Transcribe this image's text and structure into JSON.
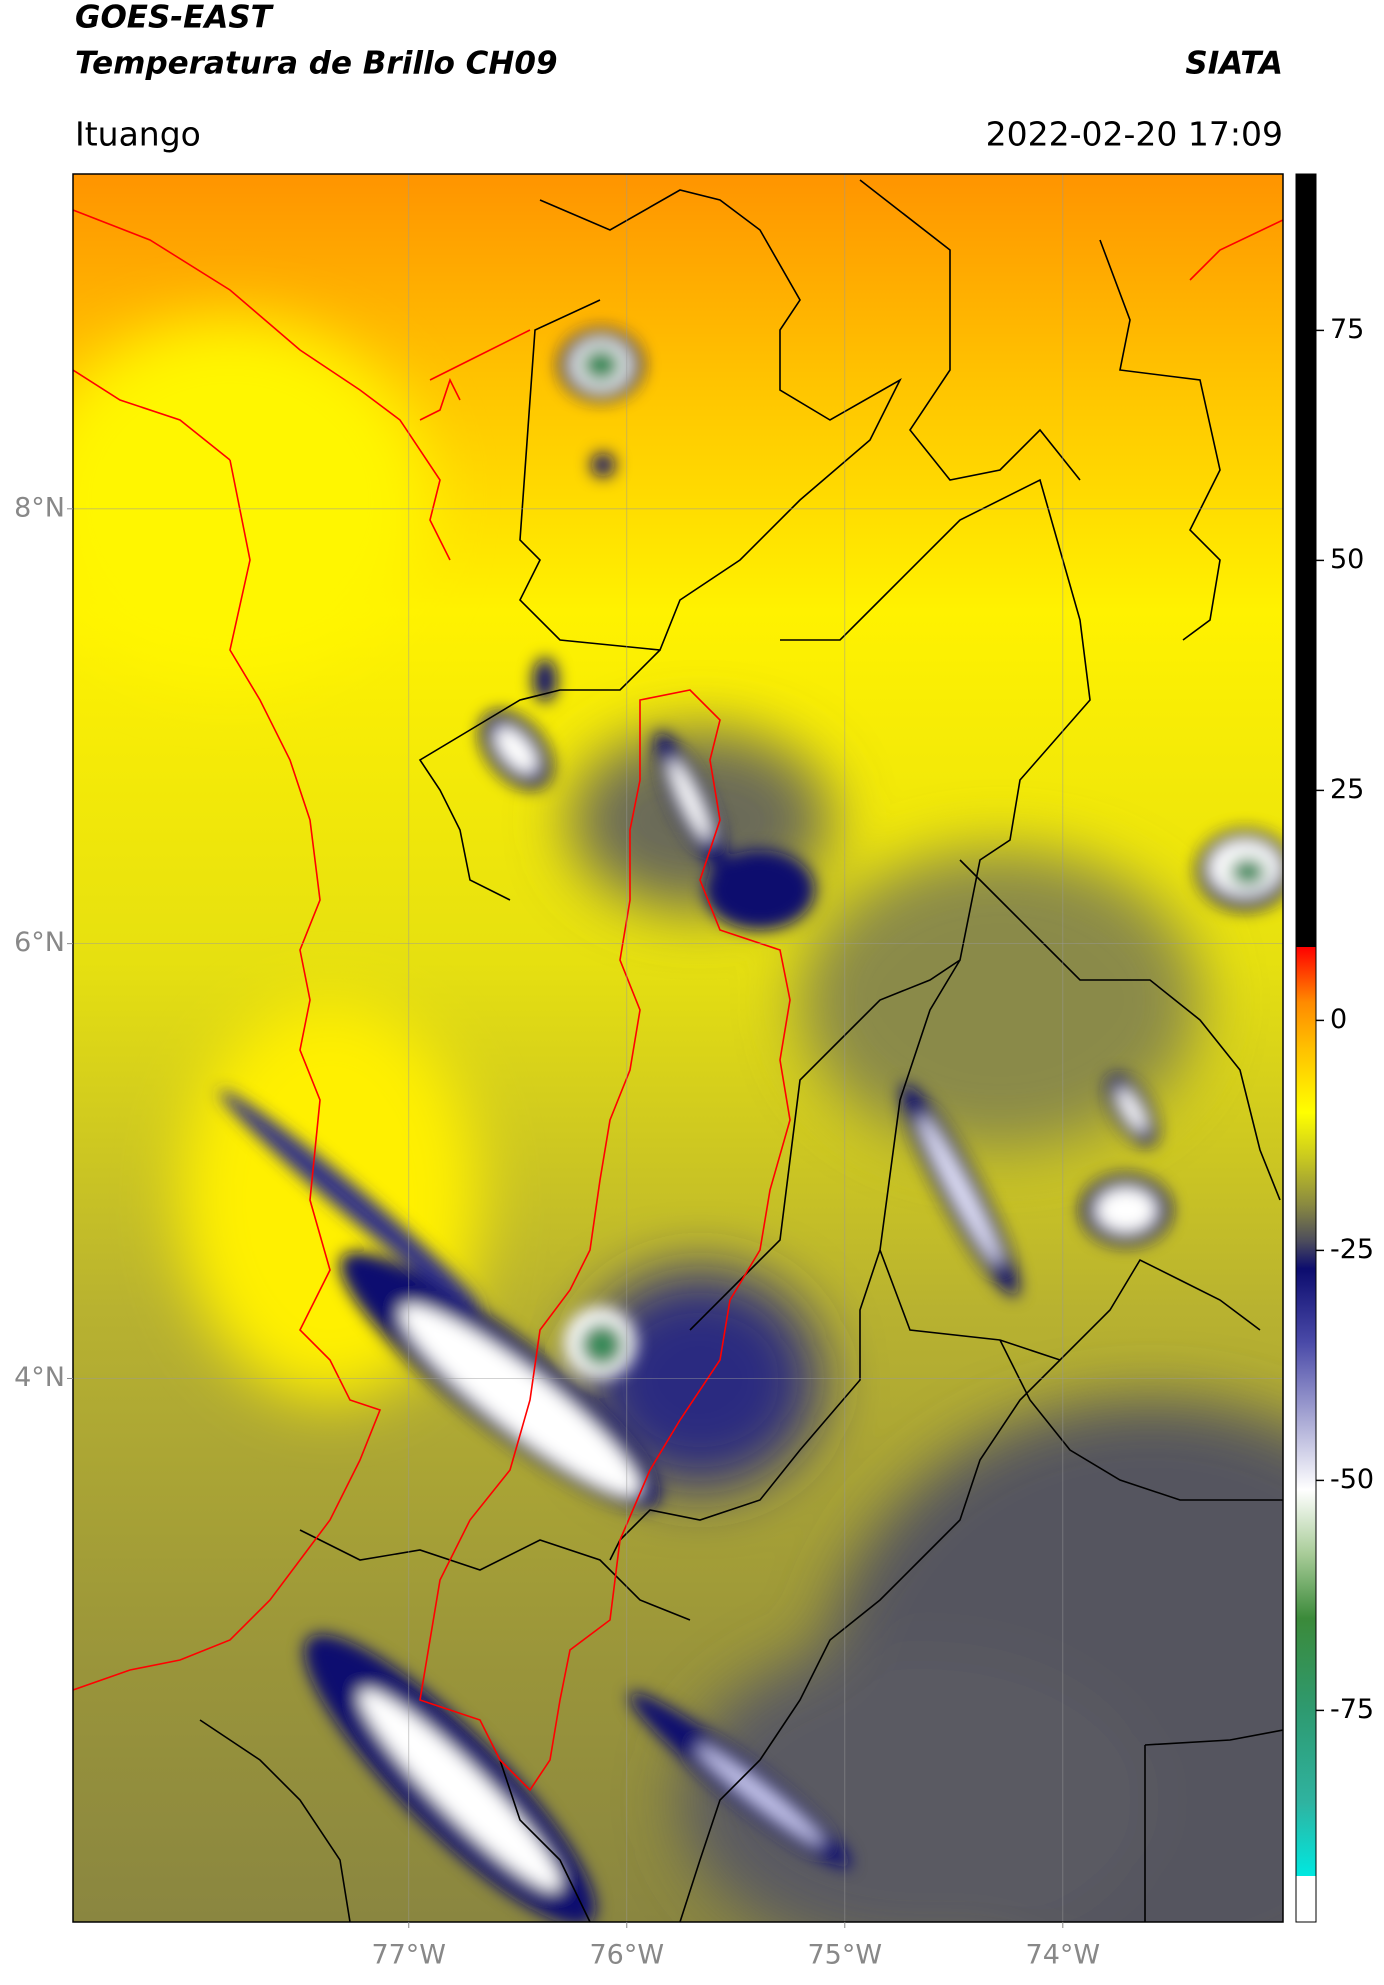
{
  "header": {
    "title": "GOES-EAST",
    "subtitle": "Temperatura de Brillo CH09",
    "source": "SIATA",
    "region": "Ituango",
    "timestamp": "2022-02-20 17:09"
  },
  "map": {
    "xlim": [
      -78.54,
      -72.99
    ],
    "ylim": [
      1.5,
      9.54
    ],
    "xticks": [
      {
        "value": -77,
        "label": "77°W"
      },
      {
        "value": -76,
        "label": "76°W"
      },
      {
        "value": -75,
        "label": "75°W"
      },
      {
        "value": -74,
        "label": "74°W"
      }
    ],
    "yticks": [
      {
        "value": 8,
        "label": "8°N"
      },
      {
        "value": 6,
        "label": "6°N"
      },
      {
        "value": 4,
        "label": "4°N"
      }
    ],
    "grid": true
  },
  "colorbar": {
    "clim": [
      -98,
      92
    ],
    "ticks": [
      75,
      50,
      25,
      0,
      -25,
      -50,
      -75
    ],
    "colormap": [
      {
        "value": -98,
        "color": "#ffffff"
      },
      {
        "value": -93,
        "color": "#ffffff"
      },
      {
        "value": -93,
        "color": "#00e8e0"
      },
      {
        "value": -85,
        "color": "#2fb3a0"
      },
      {
        "value": -75,
        "color": "#2e9a70"
      },
      {
        "value": -65,
        "color": "#3b8a3a"
      },
      {
        "value": -58,
        "color": "#a8cc98"
      },
      {
        "value": -51,
        "color": "#ffffff"
      },
      {
        "value": -44,
        "color": "#b0b0d8"
      },
      {
        "value": -35,
        "color": "#4a4aa8"
      },
      {
        "value": -27,
        "color": "#0c0c6e"
      },
      {
        "value": -24,
        "color": "#4c4c5c"
      },
      {
        "value": -20,
        "color": "#8a8a40"
      },
      {
        "value": -15,
        "color": "#c8c820"
      },
      {
        "value": -10,
        "color": "#ffff00"
      },
      {
        "value": -3,
        "color": "#ffc000"
      },
      {
        "value": 2,
        "color": "#ff8a00"
      },
      {
        "value": 8,
        "color": "#ff0000"
      },
      {
        "value": 8,
        "color": "#000000"
      },
      {
        "value": 92,
        "color": "#000000"
      }
    ]
  }
}
